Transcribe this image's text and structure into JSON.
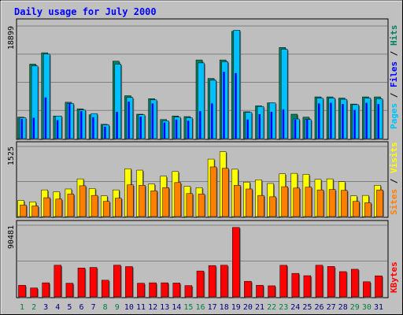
{
  "title": "Daily usage for July 2000",
  "colors": {
    "background": "#c0c0c0",
    "panel": "#bebebe",
    "border": "#000000",
    "title_text": "#0000ff",
    "hits": "#00805c",
    "files": "#0000ff",
    "pages": "#00c0ff",
    "visits": "#ffff00",
    "sites": "#ff8000",
    "kbytes": "#ff0000",
    "weekday_label": "#000080",
    "weekend_label": "#008040"
  },
  "chart_data": [
    {
      "type": "bar",
      "panel": "hits-files-pages",
      "ymax_label": "18899",
      "legend": [
        {
          "name": "Pages",
          "color": "#00c0ff"
        },
        {
          "name": "Files",
          "color": "#0000ff"
        },
        {
          "name": "Hits",
          "color": "#00805c"
        }
      ],
      "ylim": [
        0,
        18899
      ],
      "series": [
        {
          "name": "Hits",
          "values": [
            3600,
            12500,
            14400,
            3800,
            6100,
            5000,
            4000,
            2400,
            13000,
            7200,
            4100,
            6700,
            3200,
            3800,
            3700,
            13200,
            10100,
            13200,
            18000,
            4500,
            5500,
            6000,
            15300,
            4100,
            3600,
            7000,
            7000,
            6800,
            5800,
            7000,
            7000
          ]
        },
        {
          "name": "Files",
          "values": [
            3300,
            3500,
            6900,
            3100,
            5900,
            4600,
            3600,
            2000,
            4500,
            6200,
            3700,
            5900,
            2700,
            3200,
            3000,
            4600,
            5900,
            11200,
            11000,
            3200,
            4100,
            4500,
            4900,
            3200,
            3200,
            5900,
            6000,
            5800,
            4800,
            6000,
            5800
          ]
        },
        {
          "name": "Pages",
          "values": [
            3500,
            12200,
            14200,
            3800,
            5900,
            4800,
            4200,
            2300,
            12500,
            6900,
            4000,
            6500,
            3000,
            3600,
            3500,
            12700,
            9800,
            12900,
            18200,
            4400,
            5400,
            6000,
            15000,
            3300,
            3200,
            6800,
            6800,
            6600,
            5700,
            6800,
            6700
          ]
        }
      ]
    },
    {
      "type": "bar",
      "panel": "visits-sites",
      "ymax_label": "1525",
      "legend": [
        {
          "name": "Sites",
          "color": "#ff8000"
        },
        {
          "name": "Visits",
          "color": "#ffff00"
        }
      ],
      "ylim": [
        0,
        1525
      ],
      "series": [
        {
          "name": "Visits",
          "values": [
            350,
            320,
            580,
            540,
            600,
            820,
            610,
            450,
            580,
            1040,
            1010,
            710,
            880,
            980,
            660,
            630,
            1250,
            1410,
            1030,
            750,
            800,
            720,
            930,
            940,
            920,
            810,
            820,
            760,
            450,
            460,
            680
          ]
        },
        {
          "name": "Sites",
          "values": [
            250,
            230,
            410,
            380,
            490,
            670,
            460,
            330,
            400,
            690,
            680,
            560,
            630,
            740,
            500,
            490,
            1080,
            1050,
            680,
            600,
            460,
            430,
            650,
            620,
            640,
            580,
            590,
            570,
            330,
            300,
            580
          ]
        }
      ]
    },
    {
      "type": "bar",
      "panel": "kbytes",
      "ymax_label": "90481",
      "legend": [
        {
          "name": "KBytes",
          "color": "#ff0000"
        }
      ],
      "ylim": [
        0,
        90481
      ],
      "series": [
        {
          "name": "KBytes",
          "values": [
            14700,
            11300,
            17800,
            40000,
            17300,
            36500,
            37200,
            21100,
            40100,
            38300,
            17300,
            17800,
            17800,
            17500,
            14300,
            32700,
            39600,
            40000,
            87700,
            19700,
            14700,
            14000,
            39900,
            29700,
            26800,
            40000,
            38400,
            31900,
            34900,
            19100,
            26600
          ]
        }
      ]
    }
  ],
  "days": [
    "1",
    "2",
    "3",
    "4",
    "5",
    "6",
    "7",
    "8",
    "9",
    "10",
    "11",
    "12",
    "13",
    "14",
    "15",
    "16",
    "17",
    "18",
    "19",
    "20",
    "21",
    "22",
    "23",
    "24",
    "25",
    "26",
    "27",
    "28",
    "29",
    "30",
    "31"
  ],
  "weekend_days": [
    "1",
    "2",
    "8",
    "9",
    "15",
    "16",
    "22",
    "23",
    "29",
    "30"
  ]
}
